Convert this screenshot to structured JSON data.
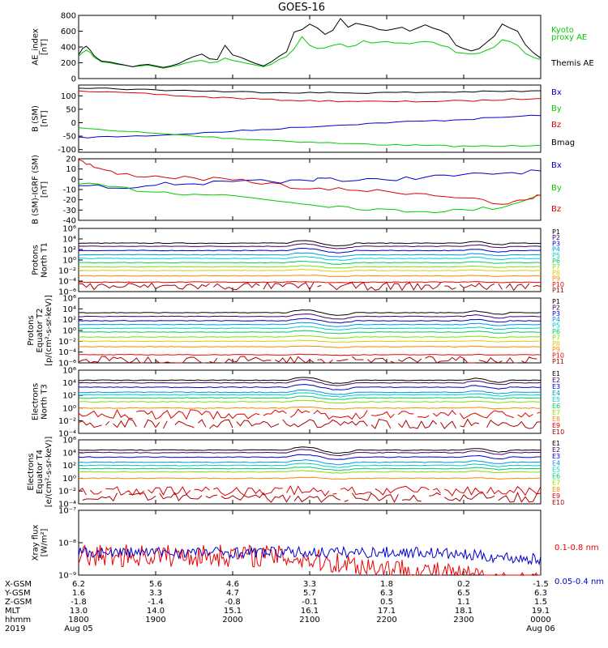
{
  "title": "GOES-16",
  "chart_data": [
    {
      "type": "line",
      "ylabel": [
        "AE_index",
        "[nT]"
      ],
      "ylim": [
        0,
        800
      ],
      "yticks": [
        "0",
        "200",
        "400",
        "600",
        "800"
      ],
      "series": [
        {
          "name": "Kyoto proxy AE",
          "color": "#00cc00",
          "x": [
            0,
            0.05,
            0.1,
            0.15,
            0.2,
            0.25,
            0.3,
            0.4,
            0.5,
            0.6,
            0.7,
            0.8,
            0.9,
            1.0,
            1.1,
            1.2,
            1.3,
            1.4,
            1.5,
            1.6,
            1.7,
            1.8,
            1.9,
            2.0,
            2.1,
            2.2,
            2.3,
            2.4,
            2.5,
            2.6,
            2.7,
            2.8,
            2.9,
            3.0,
            3.1,
            3.2,
            3.3,
            3.4,
            3.5,
            3.6,
            3.7,
            3.8,
            3.9,
            4.0,
            4.1,
            4.2,
            4.3,
            4.4,
            4.5,
            4.6,
            4.7,
            4.8,
            4.9,
            5.0,
            5.1,
            5.2,
            5.3,
            5.4,
            5.5,
            5.6,
            5.7,
            5.8,
            5.9,
            6.0
          ],
          "y": [
            280,
            330,
            360,
            330,
            270,
            240,
            210,
            200,
            180,
            170,
            150,
            160,
            170,
            150,
            130,
            150,
            170,
            200,
            220,
            230,
            200,
            210,
            260,
            230,
            210,
            190,
            170,
            150,
            180,
            240,
            280,
            380,
            530,
            420,
            380,
            390,
            420,
            440,
            400,
            420,
            480,
            450,
            460,
            470,
            450,
            450,
            440,
            460,
            470,
            460,
            420,
            400,
            330,
            320,
            310,
            320,
            360,
            400,
            490,
            470,
            420,
            320,
            270,
            240
          ]
        },
        {
          "name": "Themis AE",
          "color": "#000000",
          "x": [
            0,
            0.05,
            0.1,
            0.15,
            0.2,
            0.25,
            0.3,
            0.4,
            0.5,
            0.6,
            0.7,
            0.8,
            0.9,
            1.0,
            1.1,
            1.2,
            1.3,
            1.4,
            1.5,
            1.6,
            1.7,
            1.8,
            1.9,
            2.0,
            2.1,
            2.2,
            2.3,
            2.4,
            2.5,
            2.6,
            2.7,
            2.8,
            2.9,
            3.0,
            3.1,
            3.2,
            3.3,
            3.4,
            3.5,
            3.6,
            3.7,
            3.8,
            3.9,
            4.0,
            4.1,
            4.2,
            4.3,
            4.4,
            4.5,
            4.6,
            4.7,
            4.8,
            4.9,
            5.0,
            5.1,
            5.2,
            5.3,
            5.4,
            5.5,
            5.6,
            5.7,
            5.8,
            5.9,
            6.0
          ],
          "y": [
            300,
            380,
            410,
            360,
            290,
            250,
            220,
            210,
            190,
            170,
            150,
            170,
            180,
            160,
            140,
            160,
            190,
            240,
            280,
            310,
            250,
            240,
            420,
            300,
            270,
            230,
            190,
            160,
            210,
            280,
            340,
            590,
            620,
            690,
            640,
            560,
            610,
            760,
            650,
            700,
            680,
            660,
            620,
            610,
            630,
            650,
            600,
            640,
            680,
            640,
            610,
            560,
            420,
            380,
            350,
            380,
            460,
            540,
            690,
            640,
            600,
            430,
            330,
            260
          ]
        }
      ],
      "legend": [
        "Kyoto",
        "proxy AE",
        "Themis AE"
      ]
    },
    {
      "type": "line",
      "ylabel": [
        "B (SM)",
        "[nT]"
      ],
      "ylim": [
        -110,
        140
      ],
      "yticks": [
        "-100",
        "-50",
        "0",
        "50",
        "100"
      ],
      "series": [
        {
          "name": "Bx",
          "color": "#0000cc",
          "x": [
            0,
            0.5,
            1,
            1.5,
            2,
            2.5,
            3,
            3.5,
            4,
            4.5,
            5,
            5.5,
            6
          ],
          "y": [
            -55,
            -52,
            -47,
            -40,
            -32,
            -24,
            -15,
            -7,
            0,
            6,
            12,
            20,
            28
          ]
        },
        {
          "name": "By",
          "color": "#00cc00",
          "x": [
            0,
            0.5,
            1,
            1.5,
            2,
            2.5,
            3,
            3.5,
            4,
            4.5,
            5,
            5.5,
            6
          ],
          "y": [
            -20,
            -30,
            -40,
            -50,
            -58,
            -65,
            -72,
            -78,
            -82,
            -85,
            -87,
            -88,
            -82
          ]
        },
        {
          "name": "Bz",
          "color": "#dd0000",
          "x": [
            0,
            0.5,
            1,
            1.5,
            2,
            2.5,
            3,
            3.5,
            4,
            4.5,
            5,
            5.5,
            6
          ],
          "y": [
            120,
            112,
            105,
            97,
            92,
            86,
            82,
            80,
            78,
            79,
            81,
            85,
            92
          ]
        },
        {
          "name": "Bmag",
          "color": "#000000",
          "x": [
            0,
            0.5,
            1,
            1.5,
            2,
            2.5,
            3,
            3.5,
            4,
            4.5,
            5,
            5.5,
            6
          ],
          "y": [
            130,
            126,
            122,
            119,
            115,
            113,
            112,
            111,
            112,
            113,
            115,
            116,
            118
          ]
        }
      ],
      "legend": [
        "Bx",
        "By",
        "Bz",
        "Bmag"
      ]
    },
    {
      "type": "line",
      "ylabel": [
        "B (SM)-IGRF (SM)",
        "[nT]"
      ],
      "ylim": [
        -40,
        20
      ],
      "yticks": [
        "-40",
        "-30",
        "-20",
        "-10",
        "0",
        "10",
        "20"
      ],
      "series": [
        {
          "name": "Bx",
          "color": "#0000cc",
          "x": [
            0,
            0.5,
            1,
            1.5,
            2,
            2.5,
            3,
            3.2,
            3.5,
            4,
            4.5,
            5,
            5.5,
            6
          ],
          "y": [
            -6,
            -8,
            -5,
            -4,
            -3,
            -2,
            -2,
            2,
            -2,
            0,
            2,
            4,
            6,
            8
          ]
        },
        {
          "name": "By",
          "color": "#00cc00",
          "x": [
            0,
            0.5,
            1,
            1.5,
            2,
            2.5,
            3,
            3.5,
            4,
            4.5,
            5,
            5.5,
            6
          ],
          "y": [
            -5,
            -8,
            -12,
            -14,
            -16,
            -20,
            -24,
            -27,
            -30,
            -31,
            -30,
            -27,
            -15
          ]
        },
        {
          "name": "Bz",
          "color": "#dd0000",
          "x": [
            0,
            0.2,
            0.5,
            1,
            1.5,
            2,
            2.5,
            3,
            3.5,
            4,
            4.5,
            5,
            5.5,
            5.8,
            6
          ],
          "y": [
            20,
            12,
            5,
            3,
            1,
            -1,
            -4,
            -10,
            -10,
            -12,
            -14,
            -18,
            -25,
            -20,
            -15
          ]
        }
      ],
      "legend": [
        "Bx",
        "By",
        "Bz"
      ]
    },
    {
      "type": "line",
      "ylabel": [
        "Protons",
        "North T1"
      ],
      "ylog": true,
      "yticks": [
        "10⁻⁶",
        "10⁻⁴",
        "10⁻²",
        "10⁰",
        "10²",
        "10⁴",
        "10⁶"
      ],
      "ylim_exp": [
        -6,
        6
      ],
      "channels": [
        {
          "name": "P1",
          "color": "#000000",
          "level": 3.2
        },
        {
          "name": "P2",
          "color": "#440066",
          "level": 2.6
        },
        {
          "name": "P3",
          "color": "#0000cc",
          "level": 1.8
        },
        {
          "name": "P4",
          "color": "#0099dd",
          "level": 1.0
        },
        {
          "name": "P5",
          "color": "#00cccc",
          "level": 0.3
        },
        {
          "name": "P6",
          "color": "#00cc66",
          "level": -0.5
        },
        {
          "name": "P7",
          "color": "#88dd00",
          "level": -1.3
        },
        {
          "name": "P8",
          "color": "#ddcc00",
          "level": -2.0
        },
        {
          "name": "P9",
          "color": "#ff8800",
          "level": -3.0
        },
        {
          "name": "P10",
          "color": "#ee0000",
          "level": -4.2
        },
        {
          "name": "P11",
          "color": "#aa0000",
          "level": -5.0
        }
      ]
    },
    {
      "type": "line",
      "ylabel": [
        "Protons",
        "Equator T2",
        "[p/(cm²-s-sr-keV)]"
      ],
      "ylog": true,
      "yticks": [
        "10⁻⁶",
        "10⁻⁴",
        "10⁻²",
        "10⁰",
        "10²",
        "10⁴",
        "10⁶"
      ],
      "ylim_exp": [
        -6,
        6
      ],
      "channels": [
        {
          "name": "P1",
          "color": "#000000",
          "level": 3.3
        },
        {
          "name": "P2",
          "color": "#440066",
          "level": 2.6
        },
        {
          "name": "P3",
          "color": "#0000cc",
          "level": 1.8
        },
        {
          "name": "P4",
          "color": "#0099dd",
          "level": 1.1
        },
        {
          "name": "P5",
          "color": "#00cccc",
          "level": 0.4
        },
        {
          "name": "P6",
          "color": "#00cc66",
          "level": -0.3
        },
        {
          "name": "P7",
          "color": "#88dd00",
          "level": -1.2
        },
        {
          "name": "P8",
          "color": "#ddcc00",
          "level": -2.0
        },
        {
          "name": "P9",
          "color": "#ff8800",
          "level": -3.0
        },
        {
          "name": "P10",
          "color": "#ee0000",
          "level": -4.5
        },
        {
          "name": "P11",
          "color": "#aa0000",
          "level": -5.5
        }
      ]
    },
    {
      "type": "line",
      "ylabel": [
        "Electrons",
        "North T3"
      ],
      "ylog": true,
      "yticks": [
        "10⁻⁴",
        "10⁻²",
        "10⁰",
        "10²",
        "10⁴",
        "10⁶"
      ],
      "ylim_exp": [
        -4,
        6
      ],
      "channels": [
        {
          "name": "E1",
          "color": "#000000",
          "level": 4.4
        },
        {
          "name": "E2",
          "color": "#440066",
          "level": 4.0
        },
        {
          "name": "E3",
          "color": "#0000cc",
          "level": 3.3
        },
        {
          "name": "E4",
          "color": "#0099dd",
          "level": 2.5
        },
        {
          "name": "E5",
          "color": "#00cccc",
          "level": 2.1
        },
        {
          "name": "E6",
          "color": "#00cc66",
          "level": 1.6
        },
        {
          "name": "E7",
          "color": "#88dd00",
          "level": 1.0
        },
        {
          "name": "E8",
          "color": "#ff8800",
          "level": 0.0
        },
        {
          "name": "E9",
          "color": "#dd0000",
          "level": -1.0
        },
        {
          "name": "E10",
          "color": "#aa0000",
          "level": -2.5
        }
      ]
    },
    {
      "type": "line",
      "ylabel": [
        "Electrons",
        "Equator T4",
        "[e/(cm²-s-sr-keV)]"
      ],
      "ylog": true,
      "yticks": [
        "10⁻⁴",
        "10⁻²",
        "10⁰",
        "10²",
        "10⁴",
        "10⁶"
      ],
      "ylim_exp": [
        -4,
        6
      ],
      "channels": [
        {
          "name": "E1",
          "color": "#000000",
          "level": 4.4
        },
        {
          "name": "E2",
          "color": "#440066",
          "level": 4.0
        },
        {
          "name": "E3",
          "color": "#0000cc",
          "level": 3.3
        },
        {
          "name": "E4",
          "color": "#0099dd",
          "level": 2.5
        },
        {
          "name": "E5",
          "color": "#00cccc",
          "level": 2.0
        },
        {
          "name": "E6",
          "color": "#00cc66",
          "level": 1.5
        },
        {
          "name": "E7",
          "color": "#88dd00",
          "level": 1.0
        },
        {
          "name": "E8",
          "color": "#ff8800",
          "level": 0.0
        },
        {
          "name": "E9",
          "color": "#dd0000",
          "level": -2.0
        },
        {
          "name": "E10",
          "color": "#aa0000",
          "level": -3.0
        }
      ]
    },
    {
      "type": "line",
      "ylabel": [
        "Xray flux",
        "[W/m²]"
      ],
      "ylog": true,
      "yticks": [
        "10⁻⁹",
        "10⁻⁸",
        "10⁻⁷"
      ],
      "ylim_exp": [
        -9,
        -7
      ],
      "series": [
        {
          "name": "0.1-0.8 nm",
          "color": "#ee0000",
          "level": -8.4
        },
        {
          "name": "0.05-0.4 nm",
          "color": "#0000cc",
          "level": -8.3
        }
      ],
      "legend": [
        "0.1-0.8 nm",
        "0.05-0.4 nm"
      ]
    }
  ],
  "xaxis": {
    "row_labels": [
      "X-GSM",
      "Y-GSM",
      "Z-GSM",
      "MLT",
      "hhmm",
      "2019"
    ],
    "columns": [
      {
        "x": 0,
        "values": [
          "6.2",
          "1.6",
          "-1.8",
          "13.0",
          "1800",
          "Aug 05"
        ]
      },
      {
        "x": 1,
        "values": [
          "5.6",
          "3.3",
          "-1.4",
          "14.0",
          "1900",
          ""
        ]
      },
      {
        "x": 2,
        "values": [
          "4.6",
          "4.7",
          "-0.8",
          "15.1",
          "2000",
          ""
        ]
      },
      {
        "x": 3,
        "values": [
          "3.3",
          "5.7",
          "-0.1",
          "16.1",
          "2100",
          ""
        ]
      },
      {
        "x": 4,
        "values": [
          "1.8",
          "6.3",
          "0.5",
          "17.1",
          "2200",
          ""
        ]
      },
      {
        "x": 5,
        "values": [
          "0.2",
          "6.5",
          "1.1",
          "18.1",
          "2300",
          ""
        ]
      },
      {
        "x": 6,
        "values": [
          "-1.5",
          "6.3",
          "1.5",
          "19.1",
          "0000",
          "Aug 06"
        ]
      }
    ]
  }
}
